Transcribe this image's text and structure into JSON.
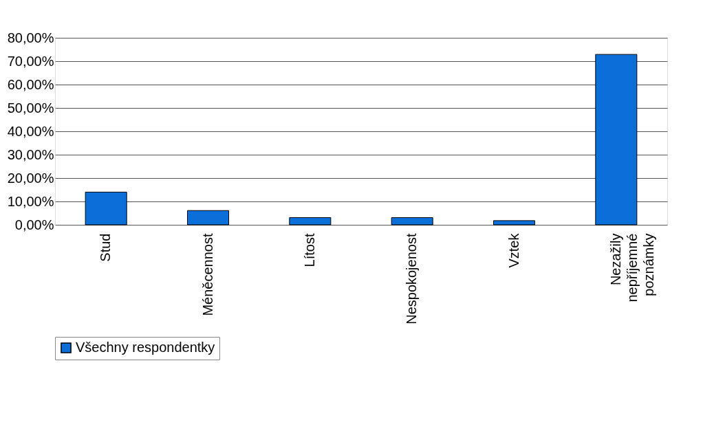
{
  "chart_data": {
    "type": "bar",
    "categories": [
      "Stud",
      "Méněcennost",
      "Lítost",
      "Nespokojenost",
      "Vztek",
      "Nezažily nepříjemné poznámky"
    ],
    "series": [
      {
        "name": "Všechny respondentky",
        "color": "#0a6fd8",
        "values": [
          14.0,
          6.1,
          3.1,
          3.1,
          1.8,
          72.9
        ]
      }
    ],
    "ylim": [
      0,
      80
    ],
    "yticks": [
      {
        "value": 0,
        "label": "0,00%"
      },
      {
        "value": 10,
        "label": "10,00%"
      },
      {
        "value": 20,
        "label": "20,00%"
      },
      {
        "value": 30,
        "label": "30,00%"
      },
      {
        "value": 40,
        "label": "40,00%"
      },
      {
        "value": 50,
        "label": "50,00%"
      },
      {
        "value": 60,
        "label": "60,00%"
      },
      {
        "value": 70,
        "label": "70,00%"
      },
      {
        "value": 80,
        "label": "80,00%"
      }
    ],
    "grid": "y",
    "legend": "bottom"
  }
}
